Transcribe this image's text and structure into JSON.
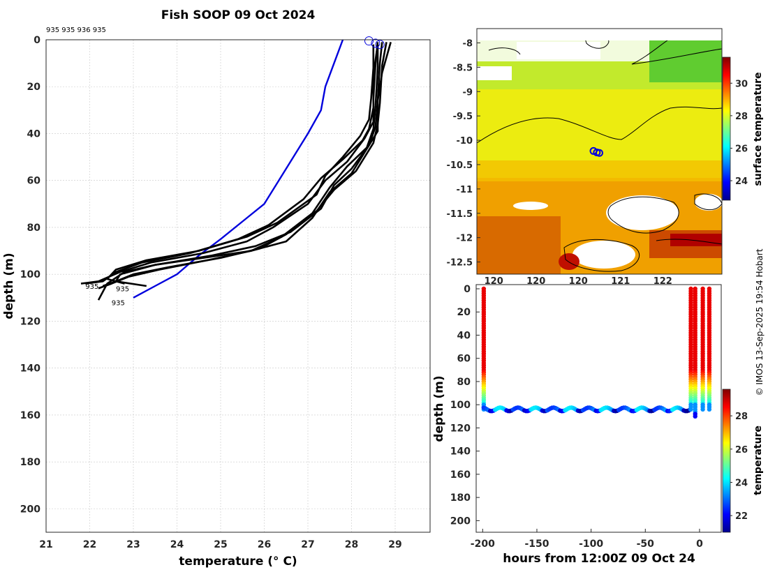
{
  "title": "Fish SOOP 09 Oct 2024",
  "credit": "© IMOS 13-Sep-2025 19:54 Hobart",
  "profile_ids_label": "935 935 936 935",
  "colors": {
    "profile": "#000000",
    "climatology": "#0000dd",
    "marker": "#0000dd"
  },
  "chart_data": [
    {
      "name": "temperature-profiles",
      "type": "line",
      "xlabel": "temperature (° C)",
      "ylabel": "depth (m)",
      "xlim": [
        21,
        29.8
      ],
      "ylim": [
        210,
        0
      ],
      "xticks": [
        21,
        22,
        23,
        24,
        25,
        26,
        27,
        28,
        29
      ],
      "yticks": [
        0,
        20,
        40,
        60,
        80,
        100,
        120,
        140,
        160,
        180,
        200
      ],
      "grid": true,
      "series": [
        {
          "name": "climatology",
          "color": "#0000dd",
          "x": [
            27.8,
            27.6,
            27.4,
            27.3,
            27.0,
            26.5,
            26.0,
            25.6,
            25.0,
            24.5,
            24.0,
            23.5,
            23.0
          ],
          "y": [
            0,
            10,
            20,
            30,
            40,
            55,
            70,
            76,
            85,
            92,
            100,
            105,
            110
          ]
        },
        {
          "name": "profile 1",
          "color": "#000000",
          "x": [
            28.6,
            28.55,
            28.5,
            28.5,
            28.3,
            27.9,
            27.4,
            27.0,
            26.2,
            25.6,
            24.6,
            23.4,
            22.7,
            22.2,
            21.8
          ],
          "y": [
            1,
            10,
            25,
            35,
            42,
            52,
            60,
            70,
            80,
            86,
            91,
            95,
            99,
            103,
            104
          ]
        },
        {
          "name": "profile 2",
          "color": "#000000",
          "x": [
            28.5,
            28.5,
            28.45,
            28.4,
            28.2,
            27.8,
            27.4,
            27.2,
            26.3,
            25.6,
            24.5,
            23.3,
            22.6,
            22.4,
            22.8
          ],
          "y": [
            2,
            12,
            25,
            34,
            41,
            50,
            58,
            66,
            78,
            84,
            90,
            94,
            98,
            102,
            104
          ]
        },
        {
          "name": "profile 3",
          "color": "#000000",
          "x": [
            28.7,
            28.65,
            28.6,
            28.55,
            28.4,
            28.0,
            27.6,
            27.3,
            26.6,
            25.8,
            24.8,
            23.5,
            22.7,
            22.6,
            23.3
          ],
          "y": [
            1,
            10,
            26,
            37,
            45,
            55,
            62,
            72,
            82,
            88,
            92,
            96,
            100,
            103,
            105
          ]
        },
        {
          "name": "profile 4",
          "color": "#000000",
          "x": [
            28.6,
            28.6,
            28.55,
            28.5,
            28.35,
            27.9,
            27.5,
            27.1,
            26.4,
            25.7,
            24.7,
            23.6,
            22.9,
            22.5,
            22.2
          ],
          "y": [
            2,
            12,
            28,
            38,
            46,
            54,
            63,
            74,
            84,
            90,
            94,
            98,
            101,
            104,
            106
          ]
        },
        {
          "name": "profile 5",
          "color": "#000000",
          "x": [
            28.8,
            28.7,
            28.65,
            28.6,
            28.5,
            28.1,
            27.6,
            27.2,
            26.5,
            25.9,
            25.0,
            23.8,
            23.0,
            22.6,
            22.3
          ],
          "y": [
            1,
            11,
            27,
            36,
            44,
            56,
            64,
            73,
            83,
            89,
            93,
            97,
            100,
            103,
            105
          ]
        },
        {
          "name": "profile 6",
          "color": "#000000",
          "x": [
            28.9,
            28.7,
            28.6,
            28.6,
            28.4,
            28.0,
            27.5,
            27.1,
            26.5,
            25.7,
            24.6,
            23.5,
            22.8,
            22.4,
            22.2
          ],
          "y": [
            1,
            14,
            26,
            39,
            45,
            57,
            65,
            76,
            86,
            90,
            93,
            96,
            99,
            104,
            111
          ]
        },
        {
          "name": "profile 7",
          "color": "#000000",
          "x": [
            28.6,
            28.5,
            28.5,
            28.4,
            28.25,
            27.8,
            27.3,
            26.9,
            26.1,
            25.4,
            24.3,
            23.2,
            22.6,
            22.3,
            21.9
          ],
          "y": [
            2,
            15,
            29,
            38,
            43,
            51,
            59,
            68,
            79,
            85,
            91,
            95,
            99,
            103,
            104
          ]
        }
      ],
      "profile_labels": [
        {
          "text": "935",
          "x": 21.9,
          "y": 105
        },
        {
          "text": "935",
          "x": 22.6,
          "y": 106
        },
        {
          "text": "935",
          "x": 22.5,
          "y": 112
        }
      ],
      "markers": [
        {
          "x": 28.4,
          "y": 0.5
        },
        {
          "x": 28.55,
          "y": 1.5
        },
        {
          "x": 28.65,
          "y": 2
        }
      ]
    },
    {
      "name": "surface-temperature-map",
      "type": "heatmap",
      "xlim": [
        119.4,
        122.3
      ],
      "ylim": [
        -12.75,
        -7.95
      ],
      "yticks": [
        -8,
        -8.5,
        -9,
        -9.5,
        -10,
        -10.5,
        -11,
        -11.5,
        -12,
        -12.5
      ],
      "xticks_visible": [
        "120",
        "120",
        "120",
        "121",
        "122"
      ],
      "colorbar": {
        "label": "surface temperature",
        "range": [
          22.8,
          31.6
        ],
        "ticks": [
          24,
          26,
          28,
          30
        ]
      },
      "track_positions": [
        {
          "lon": 120.78,
          "lat": -10.22
        },
        {
          "lon": 120.82,
          "lat": -10.25
        },
        {
          "lon": 120.85,
          "lat": -10.26
        }
      ]
    },
    {
      "name": "depth-time-section",
      "type": "scatter",
      "xlabel": "hours from 12:00Z 09 Oct 24",
      "ylabel": "depth (m)",
      "xlim": [
        -206,
        20
      ],
      "ylim": [
        210,
        0
      ],
      "xticks": [
        -200,
        -150,
        -100,
        -50,
        0
      ],
      "yticks": [
        0,
        20,
        40,
        60,
        80,
        100,
        120,
        140,
        160,
        180,
        200
      ],
      "colorbar": {
        "label": "temperature",
        "range": [
          21,
          29.6
        ],
        "ticks": [
          22,
          24,
          26,
          28
        ]
      },
      "segments": [
        {
          "type": "profile",
          "hour": -199,
          "depth_max": 104
        },
        {
          "type": "tow",
          "hour_start": -199,
          "hour_end": -8,
          "depth_mean": 104,
          "depth_amplitude": 1.5
        },
        {
          "type": "profile",
          "hour": -8,
          "depth_max": 104
        },
        {
          "type": "profile",
          "hour": -4,
          "depth_max": 111
        },
        {
          "type": "profile",
          "hour": 3,
          "depth_max": 104
        },
        {
          "type": "profile",
          "hour": 9,
          "depth_max": 105
        }
      ]
    }
  ]
}
